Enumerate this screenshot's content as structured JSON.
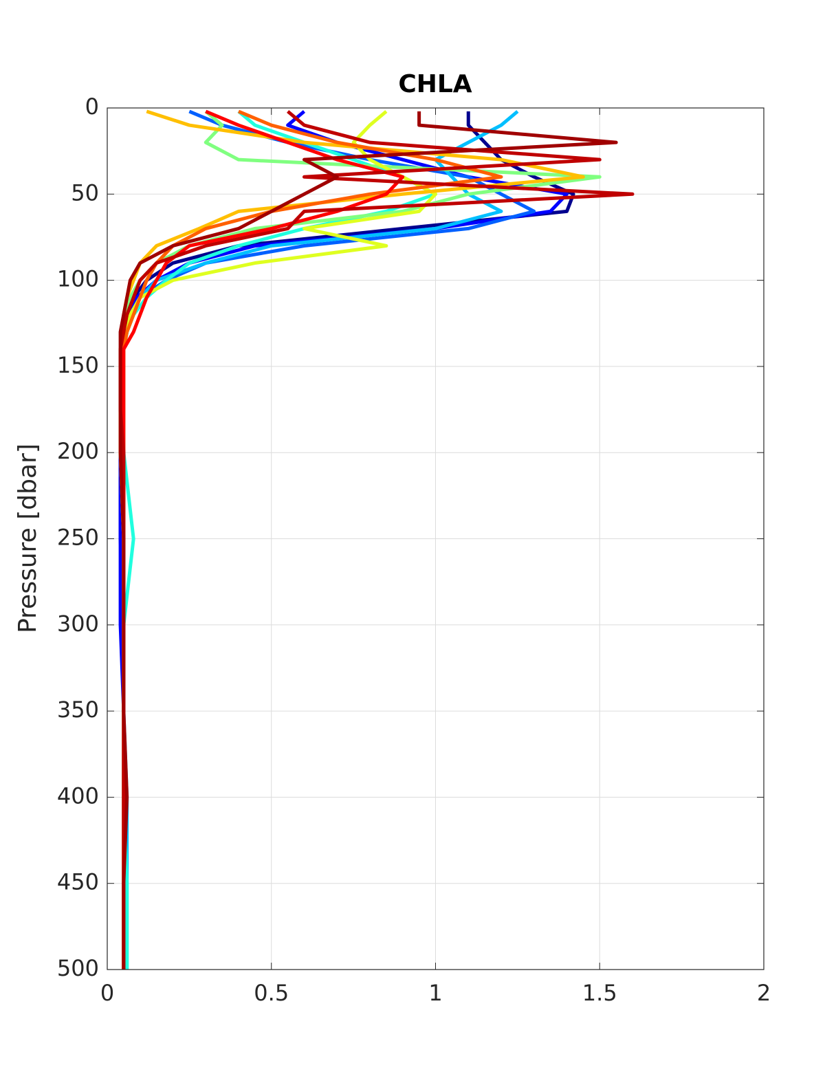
{
  "chart_data": {
    "type": "line",
    "title": "CHLA",
    "ylabel": "Pressure [dbar]",
    "xlim": [
      0,
      2
    ],
    "xticks": [
      0,
      0.5,
      1,
      1.5,
      2
    ],
    "ylim": [
      0,
      500
    ],
    "yticks": [
      0,
      50,
      100,
      150,
      200,
      250,
      300,
      350,
      400,
      450,
      500
    ],
    "y_reversed": true,
    "grid": true,
    "pressure": [
      2,
      10,
      20,
      30,
      40,
      50,
      60,
      70,
      80,
      90,
      100,
      110,
      120,
      130,
      140,
      150,
      175,
      200,
      250,
      300,
      350,
      400,
      450,
      500
    ],
    "series": [
      {
        "color": "#00008f",
        "values": [
          1.1,
          1.1,
          1.15,
          1.2,
          1.3,
          1.42,
          1.4,
          0.9,
          0.4,
          0.2,
          0.12,
          0.08,
          0.06,
          0.05,
          0.05,
          0.04,
          0.04,
          0.04,
          0.04,
          0.05,
          0.05,
          0.05,
          0.05,
          0.05
        ]
      },
      {
        "color": "#0000ff",
        "values": [
          0.6,
          0.55,
          0.7,
          0.9,
          1.1,
          1.4,
          1.35,
          1.0,
          0.45,
          0.25,
          0.15,
          0.09,
          0.07,
          0.05,
          0.05,
          0.04,
          0.04,
          0.04,
          0.04,
          0.04,
          0.05,
          0.05,
          0.05,
          0.05
        ]
      },
      {
        "color": "#0060ff",
        "values": [
          0.25,
          0.35,
          0.55,
          0.8,
          1.1,
          1.2,
          1.3,
          1.1,
          0.6,
          0.3,
          0.18,
          0.1,
          0.07,
          0.06,
          0.05,
          0.05,
          0.04,
          0.04,
          0.05,
          0.05,
          0.05,
          0.05,
          0.05,
          0.05
        ]
      },
      {
        "color": "#00bfff",
        "values": [
          1.25,
          1.2,
          1.1,
          1.0,
          1.05,
          1.1,
          1.2,
          1.0,
          0.5,
          0.3,
          0.15,
          0.1,
          0.07,
          0.06,
          0.05,
          0.05,
          0.05,
          0.05,
          0.05,
          0.05,
          0.05,
          0.06,
          0.06,
          0.06
        ]
      },
      {
        "color": "#20ffdf",
        "values": [
          0.4,
          0.45,
          0.6,
          0.75,
          0.9,
          1.0,
          0.85,
          0.6,
          0.4,
          0.25,
          0.18,
          0.12,
          0.08,
          0.06,
          0.05,
          0.05,
          0.05,
          0.05,
          0.08,
          0.05,
          0.05,
          0.05,
          0.06,
          0.06
        ]
      },
      {
        "color": "#80ff80",
        "values": [
          0.3,
          0.35,
          0.3,
          0.4,
          1.5,
          1.1,
          0.9,
          0.45,
          0.25,
          0.15,
          0.1,
          0.07,
          0.06,
          0.05,
          0.05,
          0.05,
          0.04,
          0.04,
          0.05,
          0.05,
          0.05,
          0.05,
          0.05,
          0.05
        ]
      },
      {
        "color": "#dfff20",
        "values": [
          0.85,
          0.8,
          0.75,
          0.8,
          0.9,
          1.0,
          0.95,
          0.6,
          0.85,
          0.45,
          0.2,
          0.1,
          0.07,
          0.05,
          0.05,
          0.05,
          0.05,
          0.05,
          0.05,
          0.05,
          0.05,
          0.05,
          0.05,
          0.05
        ]
      },
      {
        "color": "#ffbf00",
        "values": [
          0.12,
          0.25,
          0.6,
          1.2,
          1.45,
          0.9,
          0.4,
          0.28,
          0.15,
          0.1,
          0.08,
          0.06,
          0.05,
          0.05,
          0.04,
          0.04,
          0.04,
          0.04,
          0.05,
          0.05,
          0.05,
          0.05,
          0.05,
          0.05
        ]
      },
      {
        "color": "#ff6000",
        "values": [
          0.4,
          0.5,
          0.7,
          1.0,
          1.2,
          0.8,
          0.5,
          0.3,
          0.2,
          0.15,
          0.12,
          0.1,
          0.08,
          0.06,
          0.05,
          0.04,
          0.04,
          0.05,
          0.05,
          0.05,
          0.05,
          0.05,
          0.05,
          0.05
        ]
      },
      {
        "color": "#ff0000",
        "values": [
          0.3,
          0.4,
          0.55,
          0.7,
          0.9,
          0.85,
          0.7,
          0.5,
          0.25,
          0.18,
          0.15,
          0.12,
          0.1,
          0.08,
          0.05,
          0.05,
          0.05,
          0.05,
          0.05,
          0.05,
          0.05,
          0.05,
          0.05,
          0.05
        ]
      },
      {
        "color": "#bf0000",
        "values": [
          0.55,
          0.6,
          0.8,
          1.5,
          0.6,
          1.6,
          0.6,
          0.55,
          0.3,
          0.15,
          0.1,
          0.08,
          0.06,
          0.05,
          0.04,
          0.04,
          0.04,
          0.05,
          0.05,
          0.05,
          0.05,
          0.05,
          0.05,
          0.05
        ]
      },
      {
        "color": "#a00000",
        "values": [
          0.95,
          0.95,
          1.55,
          0.6,
          0.7,
          0.6,
          0.5,
          0.4,
          0.2,
          0.1,
          0.07,
          0.06,
          0.05,
          0.04,
          0.04,
          0.04,
          0.04,
          0.04,
          0.05,
          0.05,
          0.05,
          0.06,
          0.05,
          0.05
        ]
      }
    ]
  }
}
